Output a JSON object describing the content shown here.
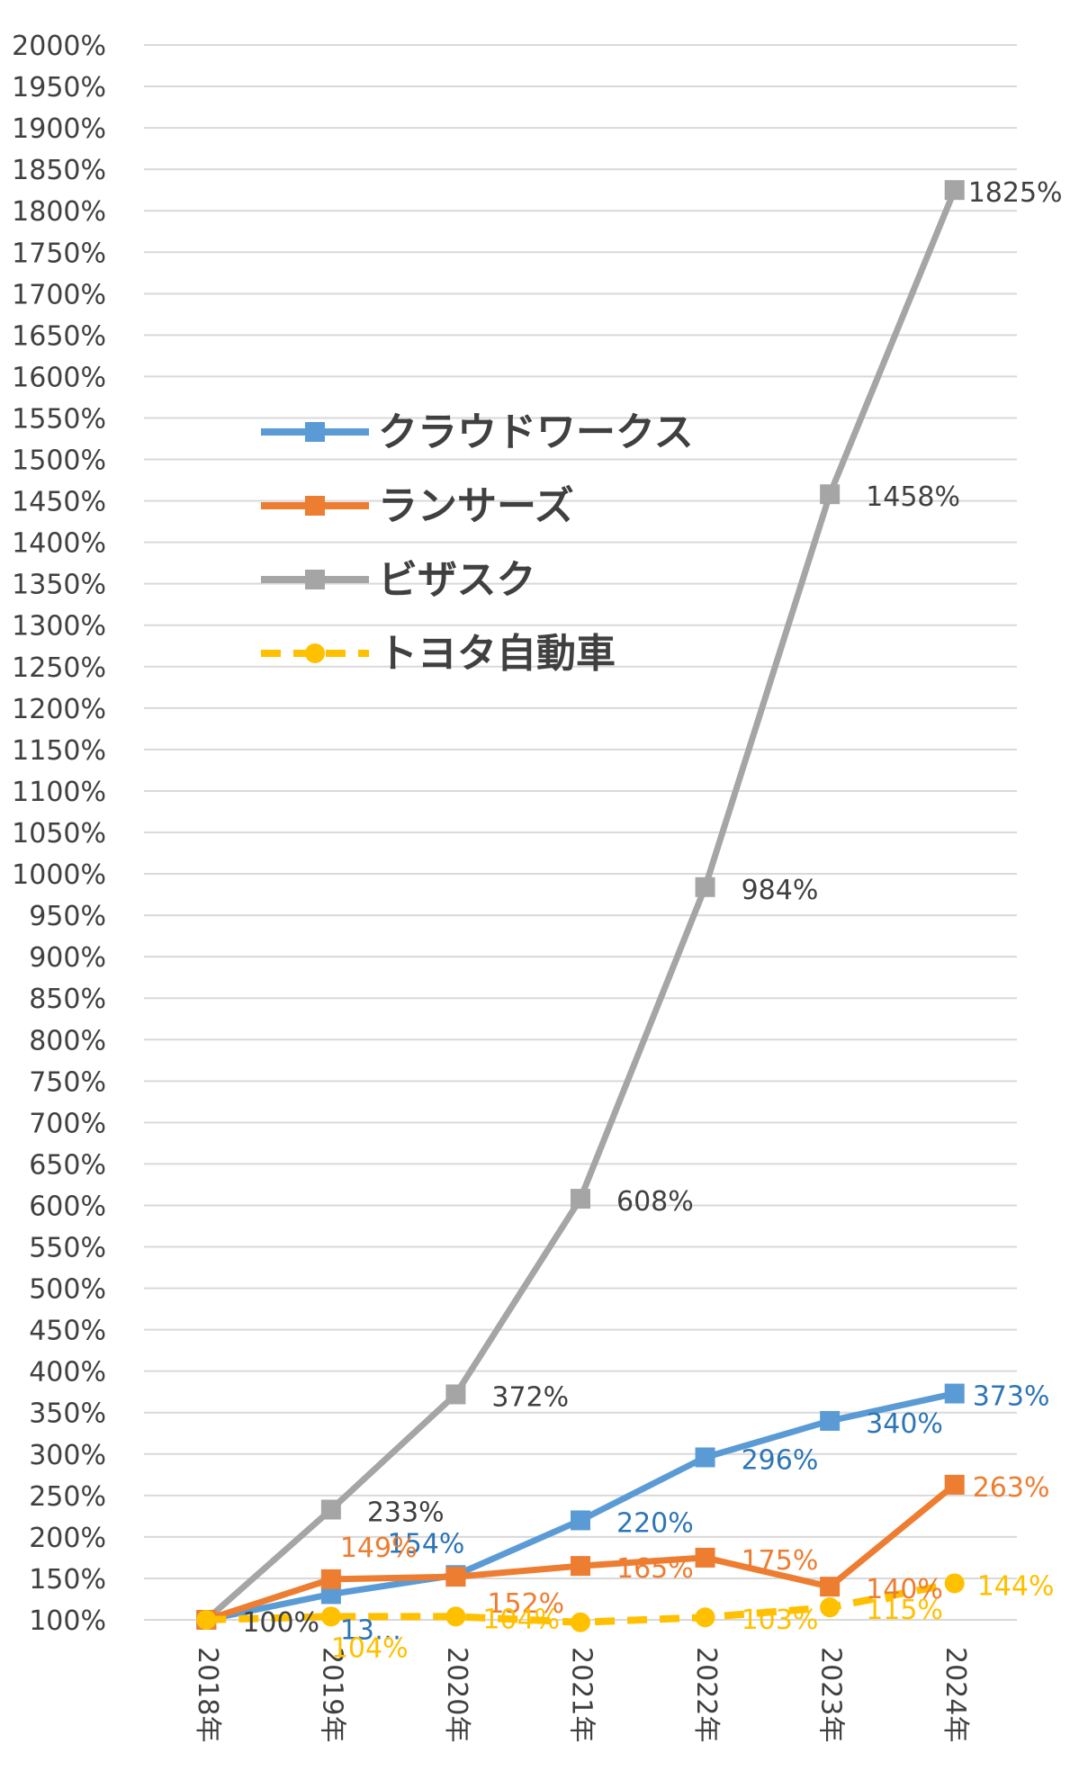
{
  "chart_data": {
    "type": "line",
    "title": "",
    "xlabel": "",
    "ylabel": "",
    "x": [
      "2018年",
      "2019年",
      "2020年",
      "2021年",
      "2022年",
      "2023年",
      "2024年"
    ],
    "ylim": [
      100,
      2000
    ],
    "ystep": 50,
    "yunit": "%",
    "grid": true,
    "legend": "center-left",
    "series": [
      {
        "name": "クラウドワークス",
        "values": [
          100,
          131,
          154,
          220,
          296,
          340,
          373
        ],
        "labels": [
          "",
          "13…",
          "154%",
          "220%",
          "296%",
          "340%",
          "373%"
        ],
        "color": "#5b9bd5",
        "label_color": "#2e75b6",
        "marker": "square",
        "dash": false
      },
      {
        "name": "ランサーズ",
        "values": [
          100,
          149,
          152,
          165,
          175,
          140,
          263
        ],
        "labels": [
          "",
          "149%",
          "152%",
          "165%",
          "175%",
          "140%",
          "263%"
        ],
        "color": "#ed7d31",
        "label_color": "#ed7d31",
        "marker": "square",
        "dash": false
      },
      {
        "name": "ビザスク",
        "values": [
          100,
          233,
          372,
          608,
          984,
          1458,
          1825
        ],
        "labels": [
          "100%",
          "233%",
          "372%",
          "608%",
          "984%",
          "1458%",
          "1825%"
        ],
        "color": "#a5a5a5",
        "label_color": "#404040",
        "marker": "square",
        "dash": false
      },
      {
        "name": "トヨタ自動車",
        "values": [
          100,
          104,
          104,
          97,
          103,
          115,
          144
        ],
        "labels": [
          "",
          "104%",
          "104%",
          "",
          "103%",
          "115%",
          "144%"
        ],
        "color": "#ffc000",
        "label_color": "#ffc000",
        "marker": "circle",
        "dash": true
      }
    ]
  }
}
